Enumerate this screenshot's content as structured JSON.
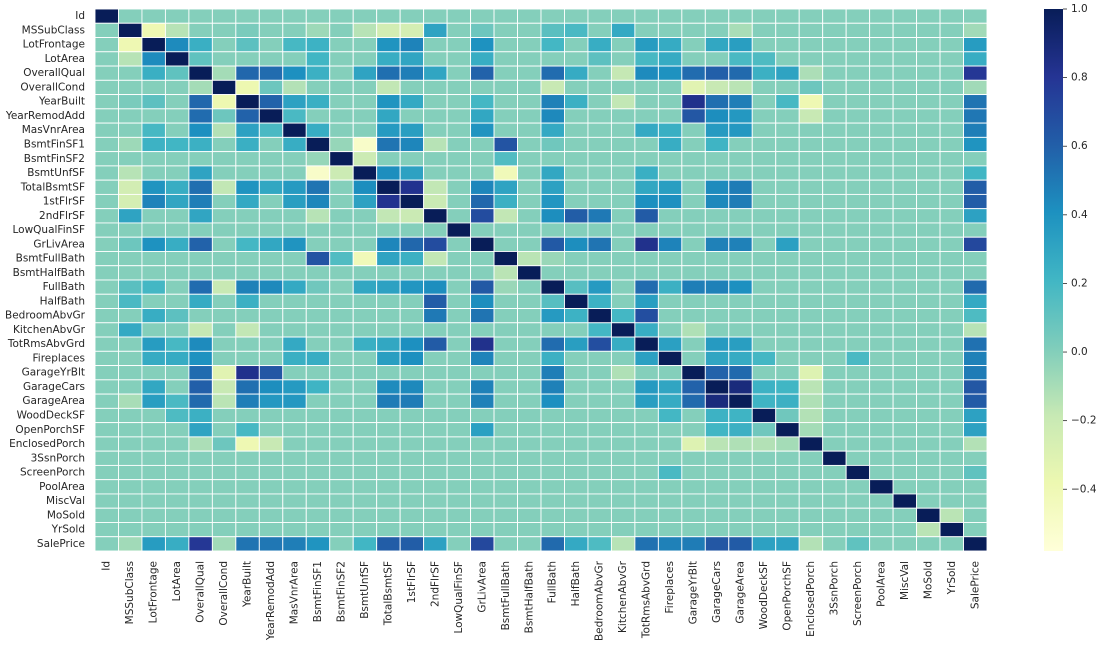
{
  "chart_data": {
    "type": "heatmap",
    "title": "",
    "variables": [
      "Id",
      "MSSubClass",
      "LotFrontage",
      "LotArea",
      "OverallQual",
      "OverallCond",
      "YearBuilt",
      "YearRemodAdd",
      "MasVnrArea",
      "BsmtFinSF1",
      "BsmtFinSF2",
      "BsmtUnfSF",
      "TotalBsmtSF",
      "1stFlrSF",
      "2ndFlrSF",
      "LowQualFinSF",
      "GrLivArea",
      "BsmtFullBath",
      "BsmtHalfBath",
      "FullBath",
      "HalfBath",
      "BedroomAbvGr",
      "KitchenAbvGr",
      "TotRmsAbvGrd",
      "Fireplaces",
      "GarageYrBlt",
      "GarageCars",
      "GarageArea",
      "WoodDeckSF",
      "OpenPorchSF",
      "EnclosedPorch",
      "3SsnPorch",
      "ScreenPorch",
      "PoolArea",
      "MiscVal",
      "MoSold",
      "YrSold",
      "SalePrice"
    ],
    "colormap": "YlGnBu",
    "vmin": -0.58,
    "vmax": 1.0,
    "colorbar_ticks": [
      {
        "value": 1.0,
        "label": "1.0"
      },
      {
        "value": 0.8,
        "label": "0.8"
      },
      {
        "value": 0.6,
        "label": "0.6"
      },
      {
        "value": 0.4,
        "label": "0.4"
      },
      {
        "value": 0.2,
        "label": "0.2"
      },
      {
        "value": 0.0,
        "label": "0.0"
      },
      {
        "value": -0.2,
        "label": "−0.2"
      },
      {
        "value": -0.4,
        "label": "−0.4"
      }
    ],
    "correlations": [
      {
        "a": "MSSubClass",
        "b": "LotFrontage",
        "v": -0.39
      },
      {
        "a": "MSSubClass",
        "b": "LotArea",
        "v": -0.14
      },
      {
        "a": "MSSubClass",
        "b": "YearBuilt",
        "v": 0.03
      },
      {
        "a": "MSSubClass",
        "b": "BsmtFinSF1",
        "v": -0.07
      },
      {
        "a": "MSSubClass",
        "b": "BsmtUnfSF",
        "v": -0.14
      },
      {
        "a": "MSSubClass",
        "b": "TotalBsmtSF",
        "v": -0.24
      },
      {
        "a": "MSSubClass",
        "b": "1stFlrSF",
        "v": -0.25
      },
      {
        "a": "MSSubClass",
        "b": "2ndFlrSF",
        "v": 0.31
      },
      {
        "a": "MSSubClass",
        "b": "GrLivArea",
        "v": 0.07
      },
      {
        "a": "MSSubClass",
        "b": "FullBath",
        "v": 0.13
      },
      {
        "a": "MSSubClass",
        "b": "HalfBath",
        "v": 0.18
      },
      {
        "a": "MSSubClass",
        "b": "KitchenAbvGr",
        "v": 0.28
      },
      {
        "a": "MSSubClass",
        "b": "GarageArea",
        "v": -0.1
      },
      {
        "a": "MSSubClass",
        "b": "SalePrice",
        "v": -0.08
      },
      {
        "a": "LotFrontage",
        "b": "LotArea",
        "v": 0.43
      },
      {
        "a": "LotFrontage",
        "b": "OverallQual",
        "v": 0.25
      },
      {
        "a": "LotFrontage",
        "b": "YearBuilt",
        "v": 0.12
      },
      {
        "a": "LotFrontage",
        "b": "MasVnrArea",
        "v": 0.19
      },
      {
        "a": "LotFrontage",
        "b": "BsmtFinSF1",
        "v": 0.23
      },
      {
        "a": "LotFrontage",
        "b": "TotalBsmtSF",
        "v": 0.39
      },
      {
        "a": "LotFrontage",
        "b": "1stFlrSF",
        "v": 0.46
      },
      {
        "a": "LotFrontage",
        "b": "GrLivArea",
        "v": 0.4
      },
      {
        "a": "LotFrontage",
        "b": "FullBath",
        "v": 0.2
      },
      {
        "a": "LotFrontage",
        "b": "BedroomAbvGr",
        "v": 0.26
      },
      {
        "a": "LotFrontage",
        "b": "TotRmsAbvGrd",
        "v": 0.35
      },
      {
        "a": "LotFrontage",
        "b": "Fireplaces",
        "v": 0.27
      },
      {
        "a": "LotFrontage",
        "b": "GarageCars",
        "v": 0.29
      },
      {
        "a": "LotFrontage",
        "b": "GarageArea",
        "v": 0.34
      },
      {
        "a": "LotFrontage",
        "b": "SalePrice",
        "v": 0.35
      },
      {
        "a": "LotArea",
        "b": "OverallQual",
        "v": 0.11
      },
      {
        "a": "LotArea",
        "b": "BsmtFinSF1",
        "v": 0.21
      },
      {
        "a": "LotArea",
        "b": "TotalBsmtSF",
        "v": 0.26
      },
      {
        "a": "LotArea",
        "b": "1stFlrSF",
        "v": 0.3
      },
      {
        "a": "LotArea",
        "b": "GrLivArea",
        "v": 0.26
      },
      {
        "a": "LotArea",
        "b": "BedroomAbvGr",
        "v": 0.12
      },
      {
        "a": "LotArea",
        "b": "TotRmsAbvGrd",
        "v": 0.19
      },
      {
        "a": "LotArea",
        "b": "Fireplaces",
        "v": 0.27
      },
      {
        "a": "LotArea",
        "b": "GarageArea",
        "v": 0.18
      },
      {
        "a": "LotArea",
        "b": "WoodDeckSF",
        "v": 0.17
      },
      {
        "a": "LotArea",
        "b": "SalePrice",
        "v": 0.26
      },
      {
        "a": "OverallQual",
        "b": "OverallCond",
        "v": -0.09
      },
      {
        "a": "OverallQual",
        "b": "YearBuilt",
        "v": 0.57
      },
      {
        "a": "OverallQual",
        "b": "YearRemodAdd",
        "v": 0.55
      },
      {
        "a": "OverallQual",
        "b": "MasVnrArea",
        "v": 0.41
      },
      {
        "a": "OverallQual",
        "b": "BsmtFinSF1",
        "v": 0.24
      },
      {
        "a": "OverallQual",
        "b": "BsmtUnfSF",
        "v": 0.31
      },
      {
        "a": "OverallQual",
        "b": "TotalBsmtSF",
        "v": 0.54
      },
      {
        "a": "OverallQual",
        "b": "1stFlrSF",
        "v": 0.48
      },
      {
        "a": "OverallQual",
        "b": "2ndFlrSF",
        "v": 0.3
      },
      {
        "a": "OverallQual",
        "b": "GrLivArea",
        "v": 0.59
      },
      {
        "a": "OverallQual",
        "b": "FullBath",
        "v": 0.55
      },
      {
        "a": "OverallQual",
        "b": "HalfBath",
        "v": 0.27
      },
      {
        "a": "OverallQual",
        "b": "KitchenAbvGr",
        "v": -0.18
      },
      {
        "a": "OverallQual",
        "b": "TotRmsAbvGrd",
        "v": 0.43
      },
      {
        "a": "OverallQual",
        "b": "Fireplaces",
        "v": 0.4
      },
      {
        "a": "OverallQual",
        "b": "GarageYrBlt",
        "v": 0.55
      },
      {
        "a": "OverallQual",
        "b": "GarageCars",
        "v": 0.6
      },
      {
        "a": "OverallQual",
        "b": "GarageArea",
        "v": 0.56
      },
      {
        "a": "OverallQual",
        "b": "WoodDeckSF",
        "v": 0.24
      },
      {
        "a": "OverallQual",
        "b": "OpenPorchSF",
        "v": 0.31
      },
      {
        "a": "OverallQual",
        "b": "EnclosedPorch",
        "v": -0.11
      },
      {
        "a": "OverallQual",
        "b": "SalePrice",
        "v": 0.79
      },
      {
        "a": "OverallCond",
        "b": "YearBuilt",
        "v": -0.38
      },
      {
        "a": "OverallCond",
        "b": "YearRemodAdd",
        "v": 0.07
      },
      {
        "a": "OverallCond",
        "b": "MasVnrArea",
        "v": -0.13
      },
      {
        "a": "OverallCond",
        "b": "TotalBsmtSF",
        "v": -0.17
      },
      {
        "a": "OverallCond",
        "b": "FullBath",
        "v": -0.19
      },
      {
        "a": "OverallCond",
        "b": "GarageYrBlt",
        "v": -0.32
      },
      {
        "a": "OverallCond",
        "b": "GarageCars",
        "v": -0.19
      },
      {
        "a": "OverallCond",
        "b": "GarageArea",
        "v": -0.15
      },
      {
        "a": "OverallCond",
        "b": "EnclosedPorch",
        "v": 0.07
      },
      {
        "a": "OverallCond",
        "b": "SalePrice",
        "v": -0.08
      },
      {
        "a": "YearBuilt",
        "b": "YearRemodAdd",
        "v": 0.59
      },
      {
        "a": "YearBuilt",
        "b": "MasVnrArea",
        "v": 0.32
      },
      {
        "a": "YearBuilt",
        "b": "BsmtFinSF1",
        "v": 0.25
      },
      {
        "a": "YearBuilt",
        "b": "TotalBsmtSF",
        "v": 0.39
      },
      {
        "a": "YearBuilt",
        "b": "1stFlrSF",
        "v": 0.28
      },
      {
        "a": "YearBuilt",
        "b": "GrLivArea",
        "v": 0.2
      },
      {
        "a": "YearBuilt",
        "b": "FullBath",
        "v": 0.47
      },
      {
        "a": "YearBuilt",
        "b": "HalfBath",
        "v": 0.24
      },
      {
        "a": "YearBuilt",
        "b": "KitchenAbvGr",
        "v": -0.17
      },
      {
        "a": "YearBuilt",
        "b": "GarageYrBlt",
        "v": 0.83
      },
      {
        "a": "YearBuilt",
        "b": "GarageCars",
        "v": 0.54
      },
      {
        "a": "YearBuilt",
        "b": "GarageArea",
        "v": 0.48
      },
      {
        "a": "YearBuilt",
        "b": "OpenPorchSF",
        "v": 0.19
      },
      {
        "a": "YearBuilt",
        "b": "EnclosedPorch",
        "v": -0.39
      },
      {
        "a": "YearBuilt",
        "b": "SalePrice",
        "v": 0.52
      },
      {
        "a": "YearRemodAdd",
        "b": "MasVnrArea",
        "v": 0.18
      },
      {
        "a": "YearRemodAdd",
        "b": "TotalBsmtSF",
        "v": 0.29
      },
      {
        "a": "YearRemodAdd",
        "b": "GrLivArea",
        "v": 0.29
      },
      {
        "a": "YearRemodAdd",
        "b": "FullBath",
        "v": 0.44
      },
      {
        "a": "YearRemodAdd",
        "b": "GarageYrBlt",
        "v": 0.64
      },
      {
        "a": "YearRemodAdd",
        "b": "GarageCars",
        "v": 0.42
      },
      {
        "a": "YearRemodAdd",
        "b": "GarageArea",
        "v": 0.37
      },
      {
        "a": "YearRemodAdd",
        "b": "EnclosedPorch",
        "v": -0.19
      },
      {
        "a": "YearRemodAdd",
        "b": "SalePrice",
        "v": 0.51
      },
      {
        "a": "MasVnrArea",
        "b": "BsmtFinSF1",
        "v": 0.26
      },
      {
        "a": "MasVnrArea",
        "b": "TotalBsmtSF",
        "v": 0.36
      },
      {
        "a": "MasVnrArea",
        "b": "1stFlrSF",
        "v": 0.34
      },
      {
        "a": "MasVnrArea",
        "b": "GrLivArea",
        "v": 0.39
      },
      {
        "a": "MasVnrArea",
        "b": "FullBath",
        "v": 0.28
      },
      {
        "a": "MasVnrArea",
        "b": "TotRmsAbvGrd",
        "v": 0.28
      },
      {
        "a": "MasVnrArea",
        "b": "Fireplaces",
        "v": 0.25
      },
      {
        "a": "MasVnrArea",
        "b": "GarageCars",
        "v": 0.36
      },
      {
        "a": "MasVnrArea",
        "b": "GarageArea",
        "v": 0.37
      },
      {
        "a": "MasVnrArea",
        "b": "SalePrice",
        "v": 0.48
      },
      {
        "a": "BsmtFinSF1",
        "b": "BsmtFinSF2",
        "v": -0.05
      },
      {
        "a": "BsmtFinSF1",
        "b": "BsmtUnfSF",
        "v": -0.5
      },
      {
        "a": "BsmtFinSF1",
        "b": "TotalBsmtSF",
        "v": 0.52
      },
      {
        "a": "BsmtFinSF1",
        "b": "1stFlrSF",
        "v": 0.45
      },
      {
        "a": "BsmtFinSF1",
        "b": "2ndFlrSF",
        "v": -0.14
      },
      {
        "a": "BsmtFinSF1",
        "b": "BsmtFullBath",
        "v": 0.65
      },
      {
        "a": "BsmtFinSF1",
        "b": "FullBath",
        "v": 0.06
      },
      {
        "a": "BsmtFinSF1",
        "b": "Fireplaces",
        "v": 0.26
      },
      {
        "a": "BsmtFinSF1",
        "b": "GarageCars",
        "v": 0.22
      },
      {
        "a": "BsmtFinSF1",
        "b": "SalePrice",
        "v": 0.39
      },
      {
        "a": "BsmtFinSF2",
        "b": "BsmtUnfSF",
        "v": -0.21
      },
      {
        "a": "BsmtFinSF2",
        "b": "BsmtFullBath",
        "v": 0.16
      },
      {
        "a": "BsmtUnfSF",
        "b": "TotalBsmtSF",
        "v": 0.42
      },
      {
        "a": "BsmtUnfSF",
        "b": "1stFlrSF",
        "v": 0.32
      },
      {
        "a": "BsmtUnfSF",
        "b": "BsmtFullBath",
        "v": -0.42
      },
      {
        "a": "BsmtUnfSF",
        "b": "FullBath",
        "v": 0.29
      },
      {
        "a": "BsmtUnfSF",
        "b": "TotRmsAbvGrd",
        "v": 0.25
      },
      {
        "a": "BsmtUnfSF",
        "b": "SalePrice",
        "v": 0.21
      },
      {
        "a": "TotalBsmtSF",
        "b": "1stFlrSF",
        "v": 0.82
      },
      {
        "a": "TotalBsmtSF",
        "b": "2ndFlrSF",
        "v": -0.17
      },
      {
        "a": "TotalBsmtSF",
        "b": "GrLivArea",
        "v": 0.45
      },
      {
        "a": "TotalBsmtSF",
        "b": "BsmtFullBath",
        "v": 0.31
      },
      {
        "a": "TotalBsmtSF",
        "b": "FullBath",
        "v": 0.32
      },
      {
        "a": "TotalBsmtSF",
        "b": "TotRmsAbvGrd",
        "v": 0.29
      },
      {
        "a": "TotalBsmtSF",
        "b": "Fireplaces",
        "v": 0.34
      },
      {
        "a": "TotalBsmtSF",
        "b": "GarageCars",
        "v": 0.43
      },
      {
        "a": "TotalBsmtSF",
        "b": "GarageArea",
        "v": 0.49
      },
      {
        "a": "TotalBsmtSF",
        "b": "SalePrice",
        "v": 0.61
      },
      {
        "a": "1stFlrSF",
        "b": "2ndFlrSF",
        "v": -0.2
      },
      {
        "a": "1stFlrSF",
        "b": "GrLivArea",
        "v": 0.57
      },
      {
        "a": "1stFlrSF",
        "b": "BsmtFullBath",
        "v": 0.24
      },
      {
        "a": "1stFlrSF",
        "b": "FullBath",
        "v": 0.38
      },
      {
        "a": "1stFlrSF",
        "b": "TotRmsAbvGrd",
        "v": 0.41
      },
      {
        "a": "1stFlrSF",
        "b": "Fireplaces",
        "v": 0.41
      },
      {
        "a": "1stFlrSF",
        "b": "GarageCars",
        "v": 0.44
      },
      {
        "a": "1stFlrSF",
        "b": "GarageArea",
        "v": 0.49
      },
      {
        "a": "1stFlrSF",
        "b": "SalePrice",
        "v": 0.61
      },
      {
        "a": "2ndFlrSF",
        "b": "GrLivArea",
        "v": 0.69
      },
      {
        "a": "2ndFlrSF",
        "b": "BsmtFullBath",
        "v": -0.17
      },
      {
        "a": "2ndFlrSF",
        "b": "FullBath",
        "v": 0.42
      },
      {
        "a": "2ndFlrSF",
        "b": "HalfBath",
        "v": 0.61
      },
      {
        "a": "2ndFlrSF",
        "b": "BedroomAbvGr",
        "v": 0.5
      },
      {
        "a": "2ndFlrSF",
        "b": "TotRmsAbvGrd",
        "v": 0.62
      },
      {
        "a": "2ndFlrSF",
        "b": "SalePrice",
        "v": 0.32
      },
      {
        "a": "GrLivArea",
        "b": "FullBath",
        "v": 0.63
      },
      {
        "a": "GrLivArea",
        "b": "HalfBath",
        "v": 0.42
      },
      {
        "a": "GrLivArea",
        "b": "BedroomAbvGr",
        "v": 0.52
      },
      {
        "a": "GrLivArea",
        "b": "TotRmsAbvGrd",
        "v": 0.83
      },
      {
        "a": "GrLivArea",
        "b": "Fireplaces",
        "v": 0.46
      },
      {
        "a": "GrLivArea",
        "b": "GarageCars",
        "v": 0.47
      },
      {
        "a": "GrLivArea",
        "b": "GarageArea",
        "v": 0.47
      },
      {
        "a": "GrLivArea",
        "b": "OpenPorchSF",
        "v": 0.33
      },
      {
        "a": "GrLivArea",
        "b": "SalePrice",
        "v": 0.71
      },
      {
        "a": "BsmtFullBath",
        "b": "BsmtHalfBath",
        "v": -0.15
      },
      {
        "a": "BsmtFullBath",
        "b": "FullBath",
        "v": -0.06
      },
      {
        "a": "FullBath",
        "b": "HalfBath",
        "v": 0.14
      },
      {
        "a": "FullBath",
        "b": "BedroomAbvGr",
        "v": 0.36
      },
      {
        "a": "FullBath",
        "b": "TotRmsAbvGrd",
        "v": 0.55
      },
      {
        "a": "FullBath",
        "b": "Fireplaces",
        "v": 0.24
      },
      {
        "a": "FullBath",
        "b": "GarageYrBlt",
        "v": 0.48
      },
      {
        "a": "FullBath",
        "b": "GarageCars",
        "v": 0.47
      },
      {
        "a": "FullBath",
        "b": "GarageArea",
        "v": 0.41
      },
      {
        "a": "FullBath",
        "b": "SalePrice",
        "v": 0.56
      },
      {
        "a": "HalfBath",
        "b": "BedroomAbvGr",
        "v": 0.23
      },
      {
        "a": "HalfBath",
        "b": "TotRmsAbvGrd",
        "v": 0.34
      },
      {
        "a": "HalfBath",
        "b": "SalePrice",
        "v": 0.28
      },
      {
        "a": "BedroomAbvGr",
        "b": "KitchenAbvGr",
        "v": 0.2
      },
      {
        "a": "BedroomAbvGr",
        "b": "TotRmsAbvGrd",
        "v": 0.68
      },
      {
        "a": "BedroomAbvGr",
        "b": "SalePrice",
        "v": 0.17
      },
      {
        "a": "KitchenAbvGr",
        "b": "TotRmsAbvGrd",
        "v": 0.26
      },
      {
        "a": "KitchenAbvGr",
        "b": "GarageYrBlt",
        "v": -0.12
      },
      {
        "a": "KitchenAbvGr",
        "b": "SalePrice",
        "v": -0.14
      },
      {
        "a": "TotRmsAbvGrd",
        "b": "Fireplaces",
        "v": 0.33
      },
      {
        "a": "TotRmsAbvGrd",
        "b": "GarageCars",
        "v": 0.36
      },
      {
        "a": "TotRmsAbvGrd",
        "b": "GarageArea",
        "v": 0.34
      },
      {
        "a": "TotRmsAbvGrd",
        "b": "SalePrice",
        "v": 0.53
      },
      {
        "a": "Fireplaces",
        "b": "GarageCars",
        "v": 0.3
      },
      {
        "a": "Fireplaces",
        "b": "GarageArea",
        "v": 0.27
      },
      {
        "a": "Fireplaces",
        "b": "WoodDeckSF",
        "v": 0.2
      },
      {
        "a": "Fireplaces",
        "b": "ScreenPorch",
        "v": 0.18
      },
      {
        "a": "Fireplaces",
        "b": "SalePrice",
        "v": 0.47
      },
      {
        "a": "GarageYrBlt",
        "b": "GarageCars",
        "v": 0.59
      },
      {
        "a": "GarageYrBlt",
        "b": "GarageArea",
        "v": 0.56
      },
      {
        "a": "GarageYrBlt",
        "b": "EnclosedPorch",
        "v": -0.3
      },
      {
        "a": "GarageYrBlt",
        "b": "SalePrice",
        "v": 0.49
      },
      {
        "a": "GarageCars",
        "b": "GarageArea",
        "v": 0.88
      },
      {
        "a": "GarageCars",
        "b": "WoodDeckSF",
        "v": 0.23
      },
      {
        "a": "GarageCars",
        "b": "OpenPorchSF",
        "v": 0.21
      },
      {
        "a": "GarageCars",
        "b": "EnclosedPorch",
        "v": -0.15
      },
      {
        "a": "GarageCars",
        "b": "SalePrice",
        "v": 0.64
      },
      {
        "a": "GarageArea",
        "b": "WoodDeckSF",
        "v": 0.22
      },
      {
        "a": "GarageArea",
        "b": "OpenPorchSF",
        "v": 0.24
      },
      {
        "a": "GarageArea",
        "b": "EnclosedPorch",
        "v": -0.12
      },
      {
        "a": "GarageArea",
        "b": "SalePrice",
        "v": 0.62
      },
      {
        "a": "WoodDeckSF",
        "b": "OpenPorchSF",
        "v": 0.06
      },
      {
        "a": "WoodDeckSF",
        "b": "EnclosedPorch",
        "v": -0.13
      },
      {
        "a": "WoodDeckSF",
        "b": "SalePrice",
        "v": 0.32
      },
      {
        "a": "OpenPorchSF",
        "b": "EnclosedPorch",
        "v": -0.09
      },
      {
        "a": "OpenPorchSF",
        "b": "SalePrice",
        "v": 0.32
      },
      {
        "a": "EnclosedPorch",
        "b": "SalePrice",
        "v": -0.13
      },
      {
        "a": "ScreenPorch",
        "b": "SalePrice",
        "v": 0.11
      },
      {
        "a": "MoSold",
        "b": "YrSold",
        "v": -0.15
      }
    ]
  }
}
